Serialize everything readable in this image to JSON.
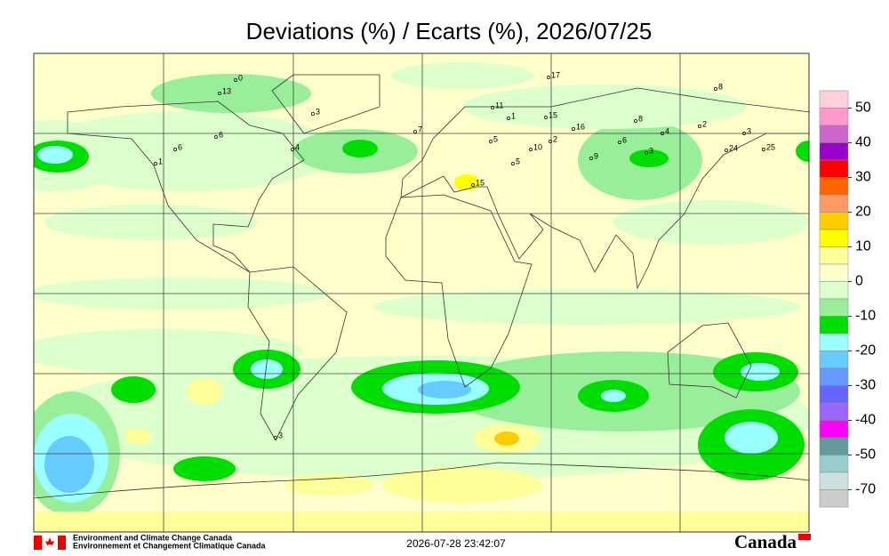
{
  "title": "Deviations (%) / Ecarts (%), 2026/07/25",
  "legend": {
    "ticks": [
      50,
      40,
      30,
      20,
      10,
      0,
      -10,
      -20,
      -30,
      -40,
      -50,
      -70
    ],
    "colors": [
      "#ffd0dc",
      "#ff99cc",
      "#cc66cc",
      "#9900cc",
      "#ff0000",
      "#ff6600",
      "#ff9966",
      "#ffcc00",
      "#ffff00",
      "#ffff99",
      "#ffffcc",
      "#ddffcc",
      "#99ee99",
      "#00dd00",
      "#99ffff",
      "#66ccff",
      "#6699ff",
      "#6666ff",
      "#9966ff",
      "#ff00ff",
      "#669999",
      "#99cccc",
      "#cce0e0",
      "#cccccc"
    ]
  },
  "stations": [
    "0",
    "13",
    "3",
    "6",
    "6",
    "1",
    "4",
    "11",
    "1",
    "7",
    "17",
    "15",
    "8",
    "8",
    "16",
    "2",
    "10",
    "6",
    "5",
    "15",
    "3",
    "24",
    "25",
    "2",
    "3",
    "5",
    "9",
    "4",
    "3"
  ],
  "footer": {
    "agency_en": "Environment and Climate Change Canada",
    "agency_fr": "Environnement et Changement Climatique Canada",
    "timestamp": "2026-07-28 23:42:07",
    "wordmark": "Canada"
  }
}
